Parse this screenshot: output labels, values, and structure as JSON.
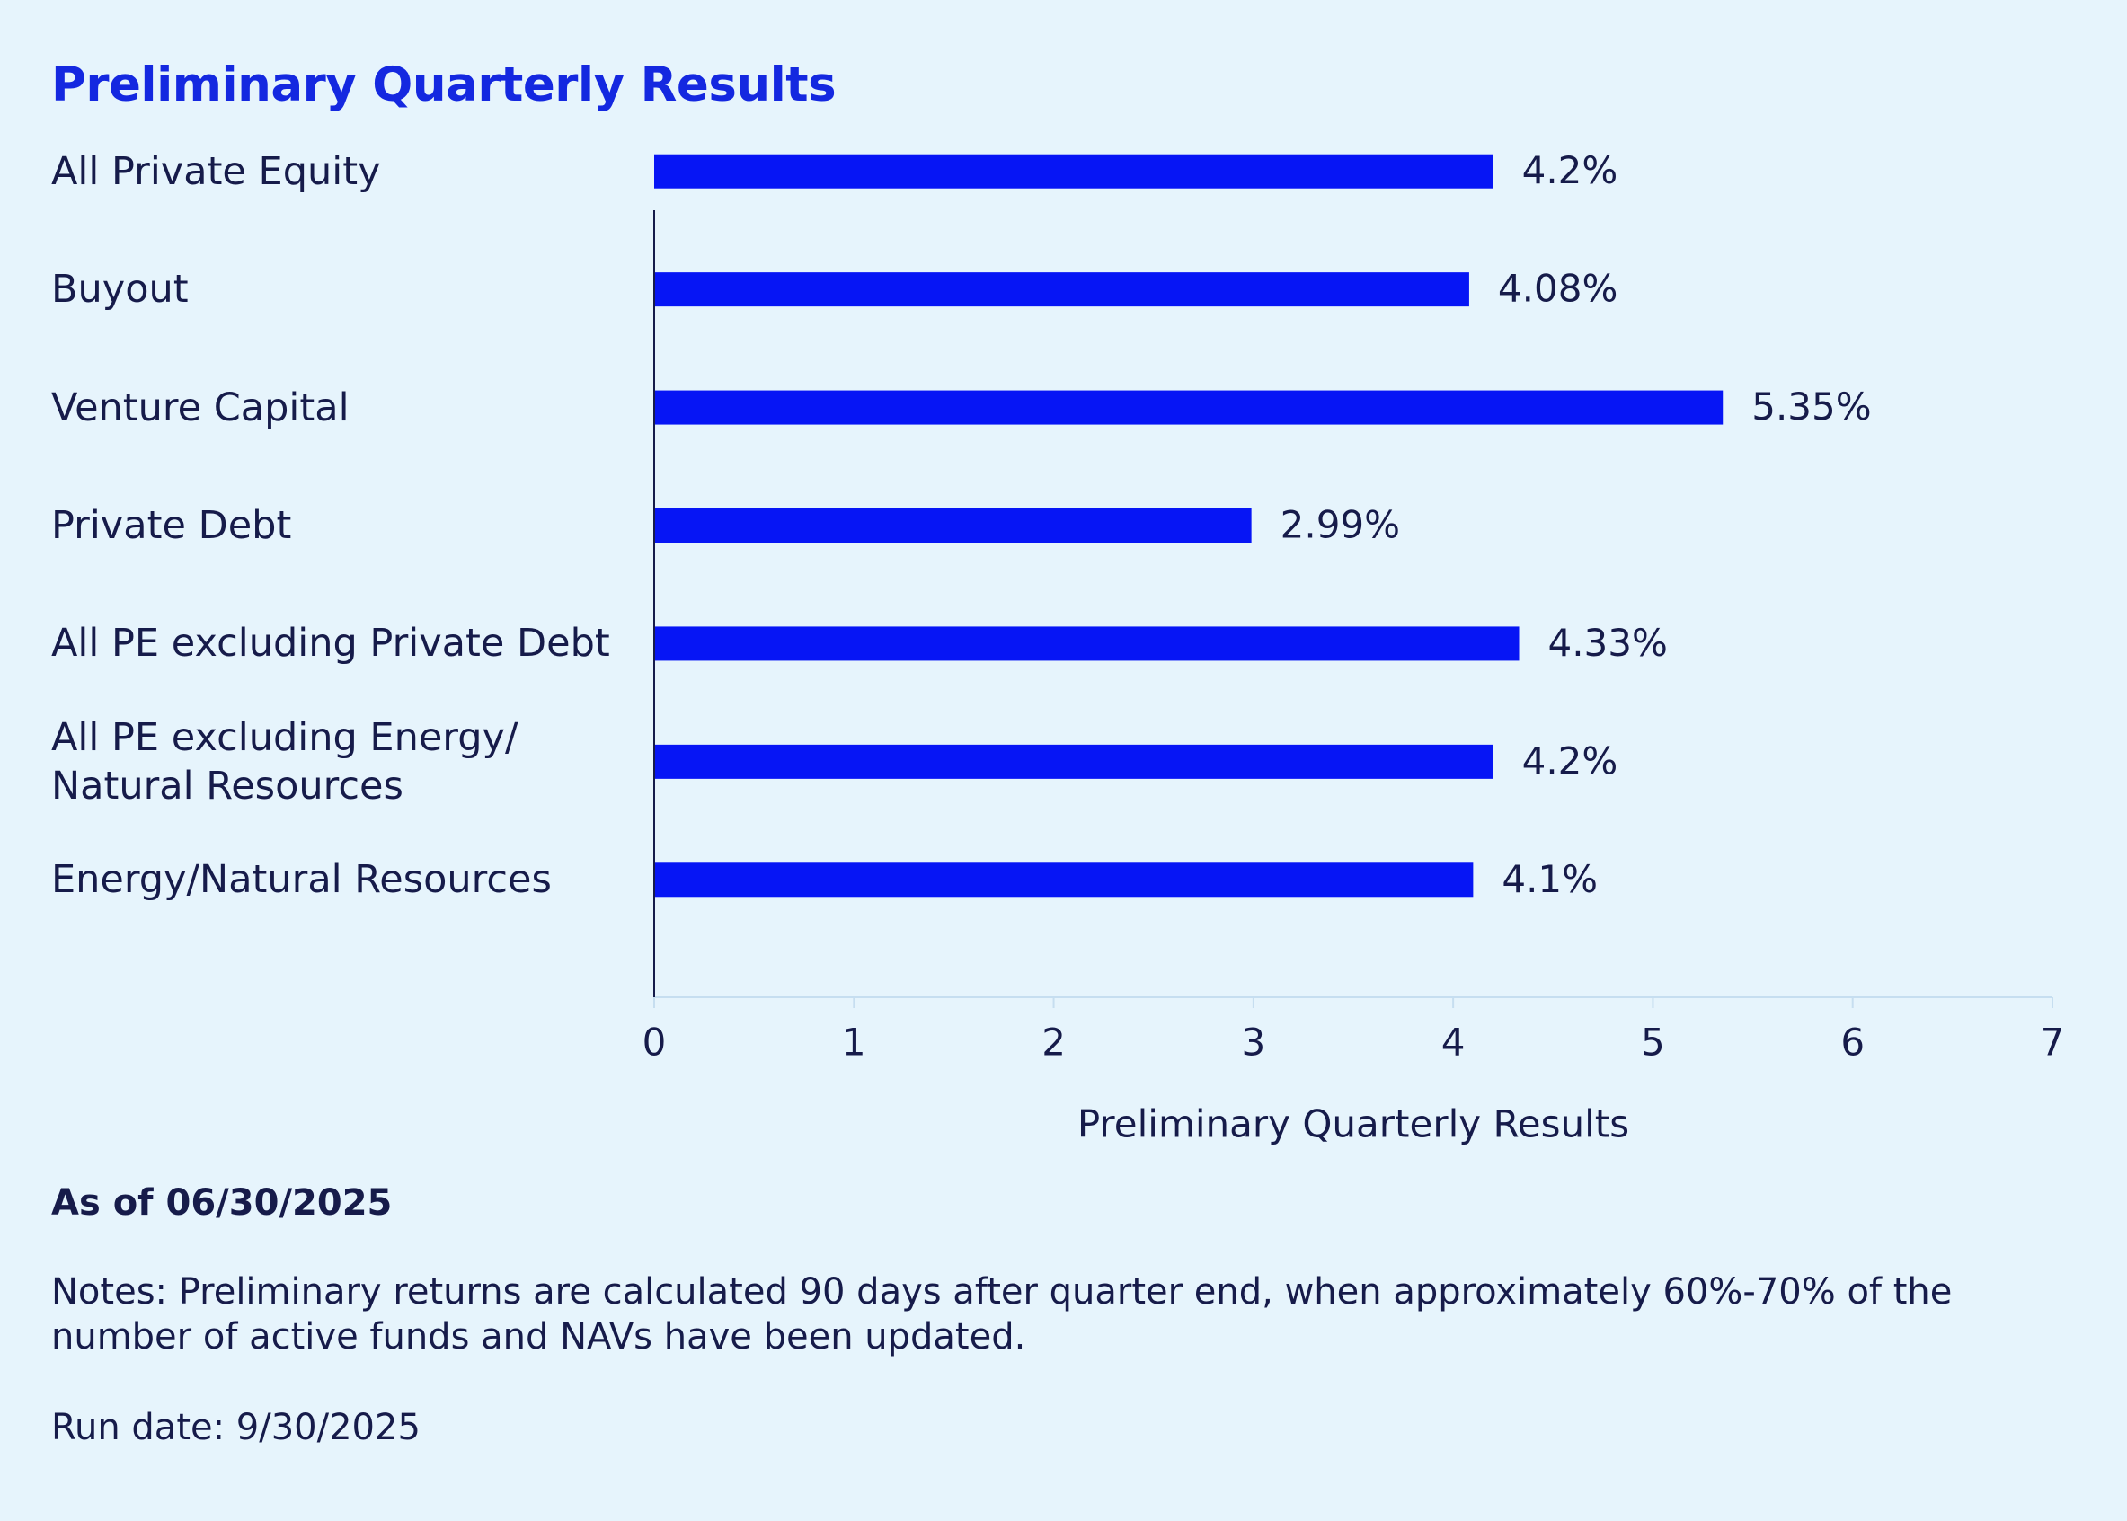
{
  "chart_data": {
    "type": "bar",
    "orientation": "horizontal",
    "title": "Preliminary Quarterly Results",
    "categories": [
      "All Private Equity",
      "Buyout",
      "Venture Capital",
      "Private Debt",
      "All PE excluding Private Debt",
      "All PE excluding Energy/\nNatural Resources",
      "Energy/Natural Resources"
    ],
    "values": [
      4.2,
      4.08,
      5.35,
      2.99,
      4.33,
      4.2,
      4.1
    ],
    "value_labels": [
      "4.2%",
      "4.08%",
      "5.35%",
      "2.99%",
      "4.33%",
      "4.2%",
      "4.1%"
    ],
    "color": "#0615f5",
    "xlim": [
      0,
      7
    ],
    "xticks": [
      0,
      1,
      2,
      3,
      4,
      5,
      6,
      7
    ],
    "x_label": "Preliminary Quarterly Results"
  },
  "footer": {
    "as_of": "As of 06/30/2025",
    "notes": "Notes: Preliminary returns are calculated 90 days after quarter end, when approximately 60%-70% of the number of active funds and NAVs have been updated.",
    "run_date": "Run date: 9/30/2025"
  }
}
